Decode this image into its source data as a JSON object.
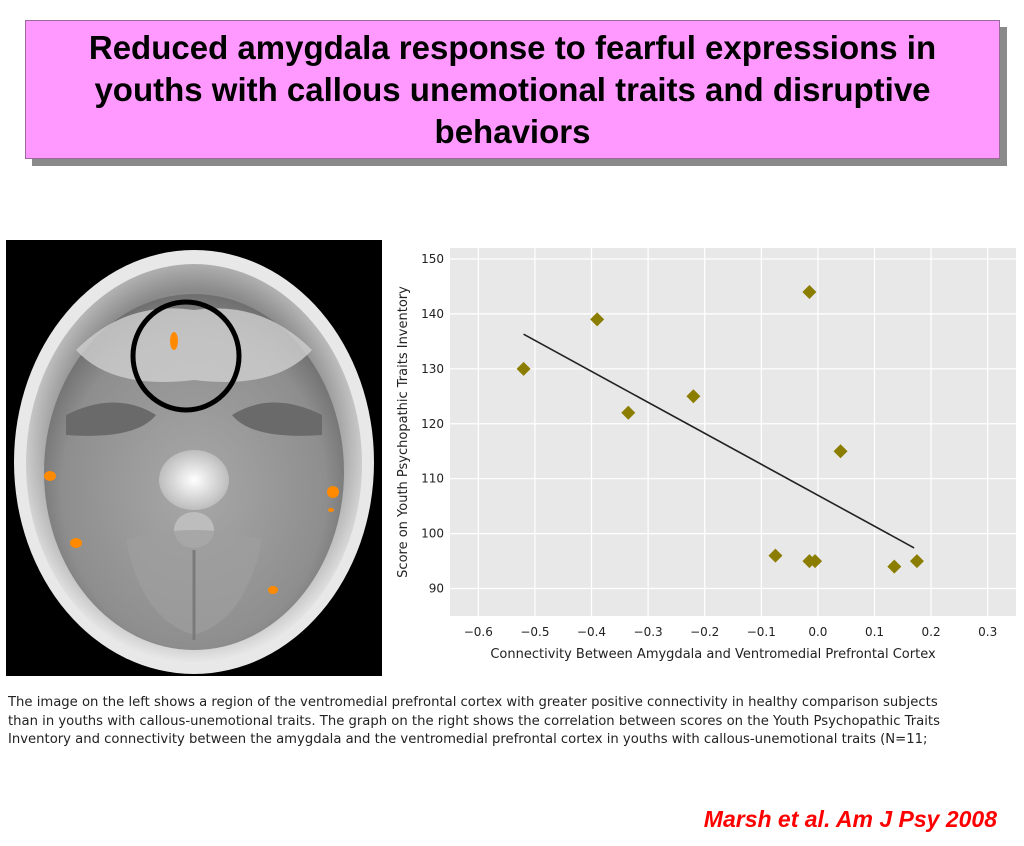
{
  "slide": {
    "title": "Reduced amygdala response to fearful expressions in youths with callous unemotional traits and disruptive behaviors",
    "caption_lines": [
      "The image on the left shows a region of the ventromedial prefrontal cortex with greater positive connectivity in healthy comparison subjects",
      "than in youths with callous-unemotional traits. The graph on the right shows the correlation between scores on the Youth Psychopathic Traits",
      "Inventory and connectivity between the amygdala and the ventromedial prefrontal cortex in youths with callous-unemotional traits (N=11;"
    ],
    "citation": "Marsh et al.  Am J Psy 2008"
  },
  "colors": {
    "title_bg": "#ff99ff",
    "marker": "#8b7d00",
    "plot_bg": "#e8e8e8",
    "citation": "#ff0000"
  },
  "brain_image": {
    "highlight_circle": "black ring around ventromedial prefrontal region",
    "activation_color": "#ff8a00"
  },
  "chart_data": {
    "type": "scatter",
    "title": "",
    "xlabel": "Connectivity Between Amygdala and Ventromedial Prefrontal Cortex",
    "ylabel": "Score on Youth Psychopathic Traits Inventory",
    "xlim": [
      -0.65,
      0.35
    ],
    "ylim": [
      85,
      152
    ],
    "xticks": [
      -0.6,
      -0.5,
      -0.4,
      -0.3,
      -0.2,
      -0.1,
      0.0,
      0.1,
      0.2,
      0.3
    ],
    "xtick_labels": [
      "−0.6",
      "−0.5",
      "−0.4",
      "−0.3",
      "−0.2",
      "−0.1",
      "0.0",
      "0.1",
      "0.2",
      "0.3"
    ],
    "yticks": [
      90,
      100,
      110,
      120,
      130,
      140,
      150
    ],
    "ytick_labels": [
      "90",
      "100",
      "110",
      "120",
      "130",
      "140",
      "150"
    ],
    "grid": true,
    "points": [
      {
        "x": -0.52,
        "y": 130
      },
      {
        "x": -0.39,
        "y": 139
      },
      {
        "x": -0.335,
        "y": 122
      },
      {
        "x": -0.22,
        "y": 125
      },
      {
        "x": -0.075,
        "y": 96
      },
      {
        "x": -0.015,
        "y": 144
      },
      {
        "x": -0.015,
        "y": 95
      },
      {
        "x": -0.005,
        "y": 95
      },
      {
        "x": 0.04,
        "y": 115
      },
      {
        "x": 0.135,
        "y": 94
      },
      {
        "x": 0.175,
        "y": 95
      }
    ],
    "trendline": {
      "x": [
        -0.52,
        0.17
      ],
      "y": [
        136.3,
        97.4
      ]
    }
  }
}
